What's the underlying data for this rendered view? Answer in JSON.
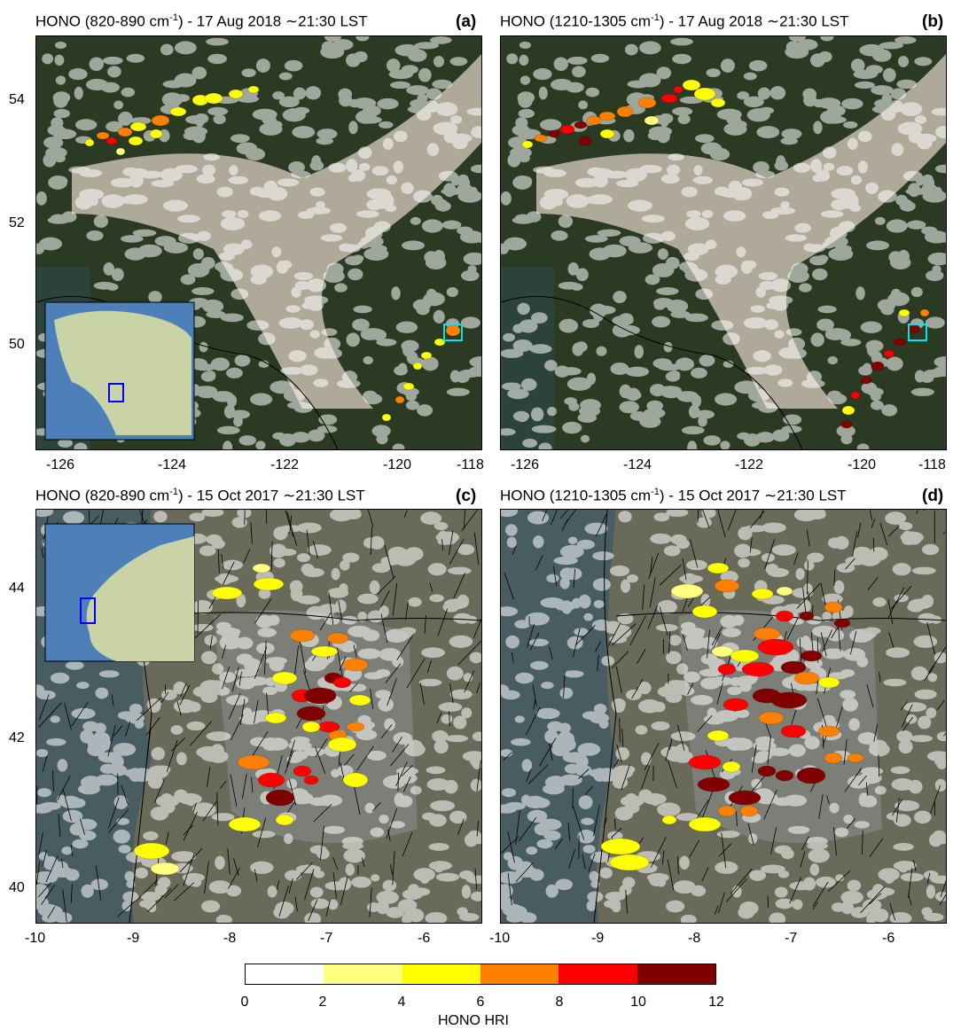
{
  "panels": [
    {
      "id": "a",
      "label": "(a)",
      "title_pre": "HONO (820-890 cm",
      "title_sup": "-1",
      "title_post": ") - 17 Aug 2018 ∼21:30 LST"
    },
    {
      "id": "b",
      "label": "(b)",
      "title_pre": "HONO (1210-1305 cm",
      "title_sup": "-1",
      "title_post": ") - 17 Aug 2018 ∼21:30 LST"
    },
    {
      "id": "c",
      "label": "(c)",
      "title_pre": "HONO (820-890 cm",
      "title_sup": "-1",
      "title_post": ") - 15 Oct 2017 ∼21:30 LST"
    },
    {
      "id": "d",
      "label": "(d)",
      "title_pre": "HONO (1210-1305 cm",
      "title_sup": "-1",
      "title_post": ") - 15 Oct 2017 ∼21:30 LST"
    }
  ],
  "top_axes": {
    "x_ticks": [
      "-126",
      "-124",
      "-122",
      "-120",
      "-118"
    ],
    "y_ticks": [
      "54",
      "52",
      "50"
    ]
  },
  "bottom_axes": {
    "x_ticks_c": [
      "-10",
      "-9",
      "-8",
      "-7",
      "-6"
    ],
    "x_ticks_d": [
      "-10",
      "-9",
      "-8",
      "-7",
      "-6"
    ],
    "y_ticks": [
      "44",
      "42",
      "40"
    ]
  },
  "colorbar": {
    "label": "HONO HRI",
    "ticks": [
      "0",
      "2",
      "4",
      "6",
      "8",
      "10",
      "12"
    ],
    "colors": [
      "#ffffff",
      "#ffff7f",
      "#ffff00",
      "#ff8000",
      "#ff0000",
      "#800000"
    ]
  },
  "colors": {
    "plume": "#cfc6b8",
    "land_top": "#2b3a22",
    "land_bottom": "#6a6a5a",
    "inset_box": "#0000ff",
    "site_box": "#00e5e5"
  }
}
